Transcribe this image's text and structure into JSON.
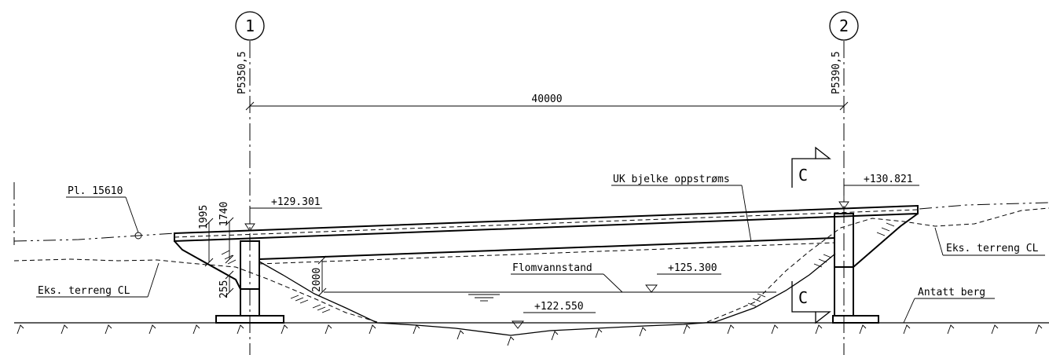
{
  "axes": [
    {
      "number": "1",
      "station": "P5350,5"
    },
    {
      "number": "2",
      "station": "P5390,5"
    }
  ],
  "span": "40000",
  "section_marker": "C",
  "levels": {
    "left_deck": "+129.301",
    "right_deck": "+130.821",
    "flood": "+125.300",
    "riverbed": "+122.550"
  },
  "dimensions": {
    "d1995": "1995",
    "d1740": "1740",
    "d2000": "2000",
    "d255": "255"
  },
  "labels": {
    "pl": "Pl. 15610",
    "uk": "UK bjelke oppstrøms",
    "flom": "Flomvannstand",
    "terreng_left": "Eks. terreng CL",
    "terreng_right": "Eks. terreng CL",
    "berg": "Antatt berg"
  }
}
